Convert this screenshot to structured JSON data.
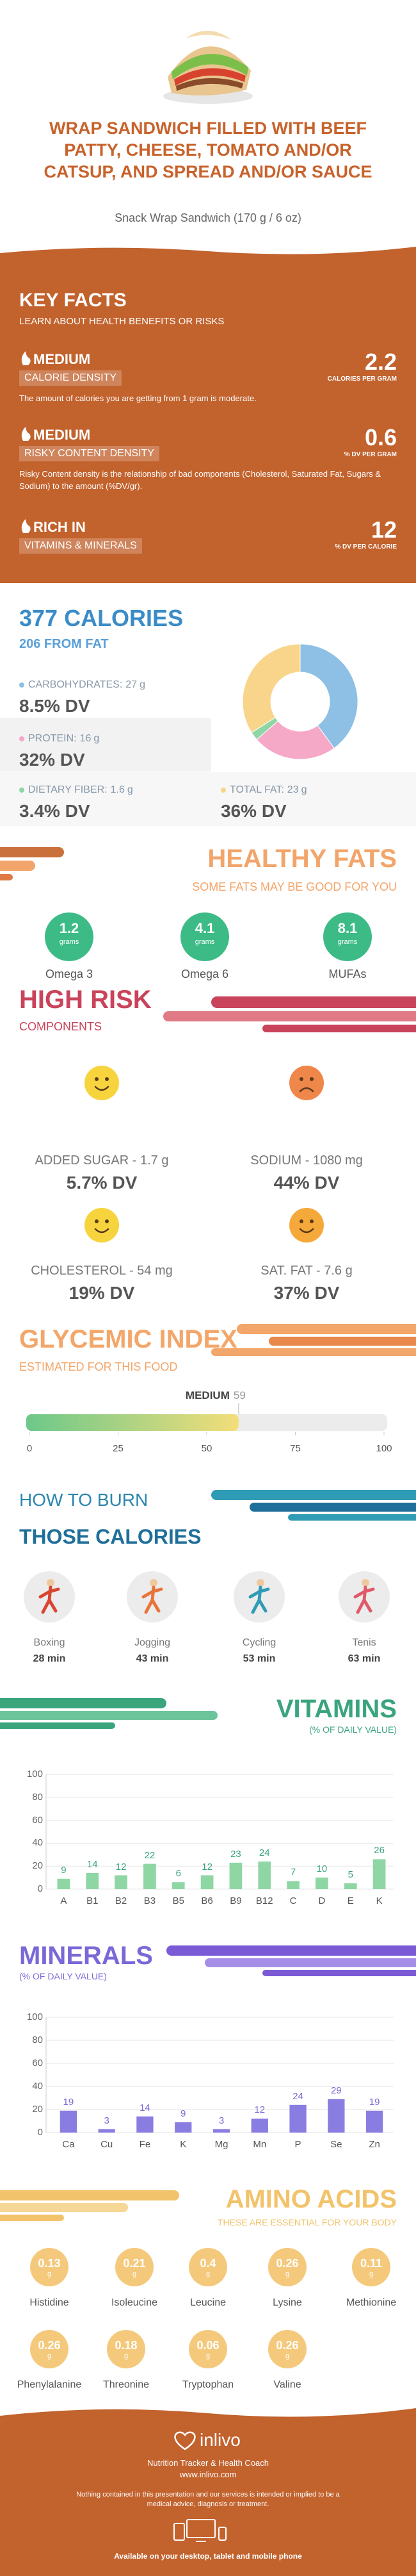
{
  "header": {
    "title": "WRAP SANDWICH FILLED WITH BEEF PATTY, CHEESE, TOMATO AND/OR CATSUP, AND SPREAD AND/OR SAUCE",
    "subtitle": "Snack Wrap Sandwich (170 g / 6 oz)"
  },
  "key_facts": {
    "title": "KEY FACTS",
    "subtitle": "LEARN ABOUT HEALTH BENEFITS OR RISKS",
    "items": [
      {
        "level": "MEDIUM",
        "name": "CALORIE DENSITY",
        "value": 2.2,
        "unit": "CALORIES PER GRAM",
        "description": "The amount of calories you are getting from 1 gram is moderate."
      },
      {
        "level": "MEDIUM",
        "name": "RISKY CONTENT DENSITY",
        "value": 0.6,
        "unit": "% DV PER GRAM",
        "description": "Risky Content density is the relationship of bad components (Cholesterol, Saturated Fat, Sugars & Sodium) to the amount (%DV/gr)."
      },
      {
        "level": "RICH IN",
        "name": "VITAMINS & MINERALS",
        "value": 12,
        "unit": "% DV PER CALORIE"
      }
    ]
  },
  "calories": {
    "title": "377 CALORIES",
    "subtitle": "206 FROM FAT",
    "macros": [
      {
        "label": "CARBOHYDRATES:",
        "amount": 27,
        "unit": "g",
        "dv": "8.5% DV",
        "color": "#8dc0e4"
      },
      {
        "label": "PROTEIN:",
        "amount": 16,
        "unit": "g",
        "dv": "32% DV",
        "color": "#f5a9c6"
      },
      {
        "label": "DIETARY FIBER:",
        "amount": 1.6,
        "unit": "g",
        "dv": "3.4% DV",
        "color": "#8fd6a5"
      },
      {
        "label": "TOTAL FAT:",
        "amount": 23,
        "unit": "g",
        "dv": "36% DV",
        "color": "#f8d58a"
      }
    ]
  },
  "healthy_fats": {
    "title": "HEALTHY FATS",
    "subtitle": "SOME FATS MAY BE GOOD FOR YOU",
    "items": [
      {
        "name": "Omega 3",
        "value": 1.2,
        "unit": "grams"
      },
      {
        "name": "Omega 6",
        "value": 4.1,
        "unit": "grams"
      },
      {
        "name": "MUFAs",
        "value": 8.1,
        "unit": "grams"
      }
    ]
  },
  "high_risk": {
    "title": "HIGH RISK",
    "subtitle": "COMPONENTS",
    "items": [
      {
        "label": "ADDED SUGAR - 1.7 g",
        "dv": "5.7% DV",
        "mood": "happy",
        "color": "#f7d43e"
      },
      {
        "label": "SODIUM - 1080 mg",
        "dv": "44% DV",
        "mood": "sad",
        "color": "#f0874a"
      },
      {
        "label": "CHOLESTEROL - 54 mg",
        "dv": "19% DV",
        "mood": "happy",
        "color": "#f7d43e"
      },
      {
        "label": "SAT. FAT - 7.6 g",
        "dv": "37% DV",
        "mood": "happy",
        "color": "#f5a93a"
      }
    ]
  },
  "glycemic_index": {
    "title": "GLYCEMIC INDEX",
    "subtitle": "ESTIMATED FOR THIS FOOD",
    "level": "MEDIUM",
    "value": 59,
    "xlim": [
      0,
      100
    ],
    "xticks": [
      0,
      25,
      50,
      75,
      100
    ]
  },
  "burn": {
    "title_line_1": "HOW TO BURN",
    "title_line_2": "THOSE CALORIES",
    "activities": [
      {
        "name": "Boxing",
        "time": "28 min"
      },
      {
        "name": "Jogging",
        "time": "43 min"
      },
      {
        "name": "Cycling",
        "time": "53 min"
      },
      {
        "name": "Tenis",
        "time": "63 min"
      }
    ]
  },
  "vitamins": {
    "type": "bar",
    "title": "VITAMINS",
    "subtitle": "(% OF DAILY VALUE)",
    "categories": [
      "A",
      "B1",
      "B2",
      "B3",
      "B5",
      "B6",
      "B9",
      "B12",
      "C",
      "D",
      "E",
      "K"
    ],
    "values": [
      9,
      14,
      12,
      22,
      6,
      12,
      23,
      24,
      7,
      10,
      5,
      26
    ],
    "color": "#8fd6a5",
    "label_color": "#3aa47d",
    "ylim": [
      0,
      100
    ],
    "yticks": [
      0,
      20,
      40,
      60,
      80,
      100
    ]
  },
  "minerals": {
    "type": "bar",
    "title": "MINERALS",
    "subtitle": "(% OF DAILY VALUE)",
    "categories": [
      "Ca",
      "Cu",
      "Fe",
      "K",
      "Mg",
      "Mn",
      "P",
      "Se",
      "Zn"
    ],
    "values": [
      19,
      3,
      14,
      9,
      3,
      12,
      24,
      29,
      19
    ],
    "color": "#8a7de2",
    "label_color": "#7b68d8",
    "ylim": [
      0,
      100
    ],
    "yticks": [
      0,
      20,
      40,
      60,
      80,
      100
    ]
  },
  "amino_acids": {
    "title": "AMINO ACIDS",
    "subtitle": "THESE ARE ESSENTIAL FOR YOUR BODY",
    "items": [
      {
        "name": "Histidine",
        "value": 0.13,
        "unit": "g"
      },
      {
        "name": "Isoleucine",
        "value": 0.21,
        "unit": "g"
      },
      {
        "name": "Leucine",
        "value": 0.4,
        "unit": "g"
      },
      {
        "name": "Lysine",
        "value": 0.26,
        "unit": "g"
      },
      {
        "name": "Methionine",
        "value": 0.11,
        "unit": "g"
      },
      {
        "name": "Phenylalanine",
        "value": 0.26,
        "unit": "g"
      },
      {
        "name": "Threonine",
        "value": 0.18,
        "unit": "g"
      },
      {
        "name": "Tryptophan",
        "value": 0.06,
        "unit": "g"
      },
      {
        "name": "Valine",
        "value": 0.26,
        "unit": "g"
      }
    ]
  },
  "footer": {
    "brand": "inlivo",
    "tagline": "Nutrition Tracker & Health Coach",
    "url": "www.inlivo.com",
    "disclaimer": "Nothing contained in this presentation and our services is intended or implied to be a medical advice, diagnosis or treatment.",
    "availability": "Available on your desktop, tablet and mobile phone"
  }
}
